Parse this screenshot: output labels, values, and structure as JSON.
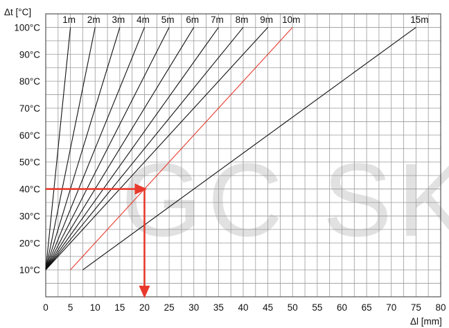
{
  "watermark": "GC SKL",
  "chart_data": {
    "type": "line",
    "title": "",
    "xlabel": "Δl [mm]",
    "ylabel": "Δt [°C]",
    "xlim": [
      0,
      80
    ],
    "ylim": [
      0,
      105
    ],
    "grid": true,
    "x_ticks": [
      {
        "value": 0,
        "label": "0"
      },
      {
        "value": 5,
        "label": "5"
      },
      {
        "value": 10,
        "label": "10"
      },
      {
        "value": 15,
        "label": "15"
      },
      {
        "value": 20,
        "label": "20",
        "highlight": true
      },
      {
        "value": 25,
        "label": "25"
      },
      {
        "value": 30,
        "label": "30"
      },
      {
        "value": 35,
        "label": "35"
      },
      {
        "value": 40,
        "label": "40"
      },
      {
        "value": 45,
        "label": "45"
      },
      {
        "value": 50,
        "label": "50"
      },
      {
        "value": 55,
        "label": "55"
      },
      {
        "value": 60,
        "label": "60"
      },
      {
        "value": 65,
        "label": "65"
      },
      {
        "value": 70,
        "label": "70"
      },
      {
        "value": 75,
        "label": "75"
      },
      {
        "value": 80,
        "label": "80"
      }
    ],
    "y_ticks": [
      {
        "value": 10,
        "label": "10°C"
      },
      {
        "value": 20,
        "label": "20°C"
      },
      {
        "value": 30,
        "label": "30°C"
      },
      {
        "value": 40,
        "label": "40°C",
        "highlight": true
      },
      {
        "value": 50,
        "label": "50°C"
      },
      {
        "value": 60,
        "label": "60°C"
      },
      {
        "value": 70,
        "label": "70°C"
      },
      {
        "value": 80,
        "label": "80°C"
      },
      {
        "value": 90,
        "label": "90°C"
      },
      {
        "value": 100,
        "label": "100°C"
      }
    ],
    "series": [
      {
        "name": "1m",
        "color": "#111111",
        "points": [
          [
            0,
            10
          ],
          [
            5,
            100
          ]
        ]
      },
      {
        "name": "2m",
        "color": "#111111",
        "points": [
          [
            0,
            10
          ],
          [
            10,
            100
          ]
        ]
      },
      {
        "name": "3m",
        "color": "#111111",
        "points": [
          [
            0,
            10
          ],
          [
            15,
            100
          ]
        ]
      },
      {
        "name": "4m",
        "color": "#111111",
        "points": [
          [
            0,
            10
          ],
          [
            20,
            100
          ]
        ]
      },
      {
        "name": "5m",
        "color": "#111111",
        "points": [
          [
            0,
            10
          ],
          [
            25,
            100
          ]
        ]
      },
      {
        "name": "6m",
        "color": "#111111",
        "points": [
          [
            0,
            10
          ],
          [
            30,
            100
          ]
        ]
      },
      {
        "name": "7m",
        "color": "#111111",
        "points": [
          [
            0,
            10
          ],
          [
            35,
            100
          ]
        ]
      },
      {
        "name": "8m",
        "color": "#111111",
        "points": [
          [
            0,
            10
          ],
          [
            40,
            100
          ]
        ]
      },
      {
        "name": "9m",
        "color": "#111111",
        "points": [
          [
            0,
            10
          ],
          [
            45,
            100
          ]
        ]
      },
      {
        "name": "10m",
        "color": "#e8392c",
        "points": [
          [
            5,
            10
          ],
          [
            50,
            100
          ]
        ]
      },
      {
        "name": "15m",
        "color": "#111111",
        "points": [
          [
            7.5,
            10
          ],
          [
            75,
            100
          ]
        ]
      }
    ],
    "annotation": {
      "color": "#e8392c",
      "from_y": 40,
      "at_x": 20,
      "to_y": 0
    }
  }
}
